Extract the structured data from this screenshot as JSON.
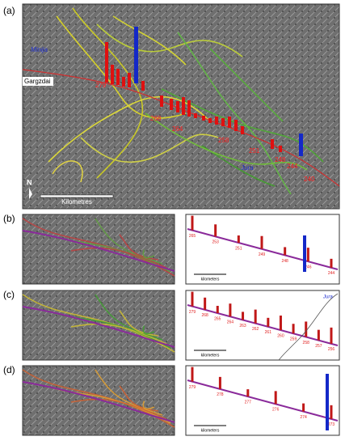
{
  "panels": [
    {
      "label": "(a)",
      "places": [
        "Minija",
        "Gargzdai",
        "Jura"
      ],
      "north": "N",
      "scale": "Kilometres",
      "markers": [
        "279",
        "268",
        "264",
        "258",
        "251",
        "248",
        "244",
        "240"
      ]
    },
    {
      "label": "(b)",
      "markers": [
        "265",
        "253",
        "251",
        "249",
        "248",
        "246",
        "244"
      ],
      "scale": "kilometers"
    },
    {
      "label": "(c)",
      "place": "Jura",
      "markers": [
        "279",
        "268",
        "265",
        "264",
        "263",
        "262",
        "261",
        "260",
        "259",
        "258",
        "257",
        "256"
      ],
      "scale": "kilometers"
    },
    {
      "label": "(d)",
      "markers": [
        "279",
        "278",
        "277",
        "276",
        "274",
        "273"
      ],
      "scale": "kilometers"
    }
  ]
}
